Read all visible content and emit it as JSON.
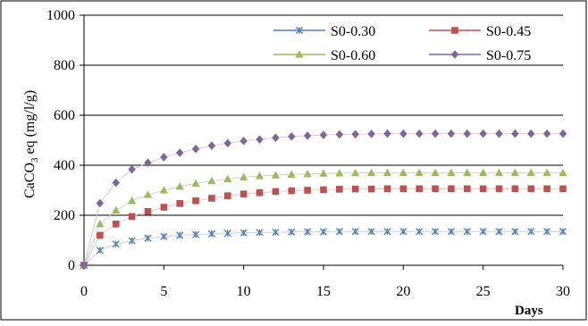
{
  "chart_data": {
    "type": "scatter",
    "title": "",
    "xlabel": "Days",
    "ylabel_main": "CaCO",
    "ylabel_sub": "3",
    "ylabel_rest": " eq (mg/l/g)",
    "xlim": [
      0,
      30
    ],
    "ylim": [
      0,
      1000
    ],
    "x_ticks": [
      0,
      5,
      10,
      15,
      20,
      25,
      30
    ],
    "y_ticks": [
      0,
      200,
      400,
      600,
      800,
      1000
    ],
    "grid": "horizontal",
    "legend_position": "top-right",
    "x": [
      0,
      1,
      2,
      3,
      4,
      5,
      6,
      7,
      8,
      9,
      10,
      11,
      12,
      13,
      14,
      15,
      16,
      17,
      18,
      19,
      20,
      21,
      22,
      23,
      24,
      25,
      26,
      27,
      28,
      29,
      30
    ],
    "series": [
      {
        "name": "S0-0.30",
        "marker": "x",
        "color": "#4f81bd",
        "values": [
          0,
          60,
          85,
          98,
          108,
          115,
          120,
          123,
          126,
          128,
          130,
          131,
          132,
          133,
          134,
          134,
          135,
          135,
          135,
          135,
          135,
          135,
          135,
          135,
          135,
          135,
          135,
          135,
          135,
          135,
          135
        ]
      },
      {
        "name": "S0-0.45",
        "marker": "square",
        "color": "#c0504d",
        "values": [
          0,
          120,
          165,
          195,
          215,
          232,
          247,
          258,
          268,
          278,
          285,
          290,
          295,
          298,
          300,
          302,
          304,
          305,
          305,
          306,
          306,
          306,
          306,
          306,
          306,
          306,
          306,
          306,
          306,
          306,
          306
        ]
      },
      {
        "name": "S0-0.60",
        "marker": "triangle",
        "color": "#9bbb59",
        "values": [
          0,
          165,
          220,
          258,
          282,
          300,
          315,
          327,
          337,
          345,
          352,
          357,
          360,
          363,
          365,
          367,
          368,
          369,
          370,
          370,
          370,
          370,
          370,
          370,
          370,
          370,
          370,
          370,
          370,
          370,
          370
        ]
      },
      {
        "name": "S0-0.75",
        "marker": "diamond",
        "color": "#8064a2",
        "values": [
          0,
          248,
          330,
          383,
          410,
          432,
          450,
          465,
          478,
          488,
          497,
          503,
          510,
          515,
          518,
          521,
          523,
          524,
          525,
          526,
          526,
          526,
          526,
          526,
          526,
          526,
          526,
          526,
          526,
          526,
          526
        ]
      }
    ]
  }
}
